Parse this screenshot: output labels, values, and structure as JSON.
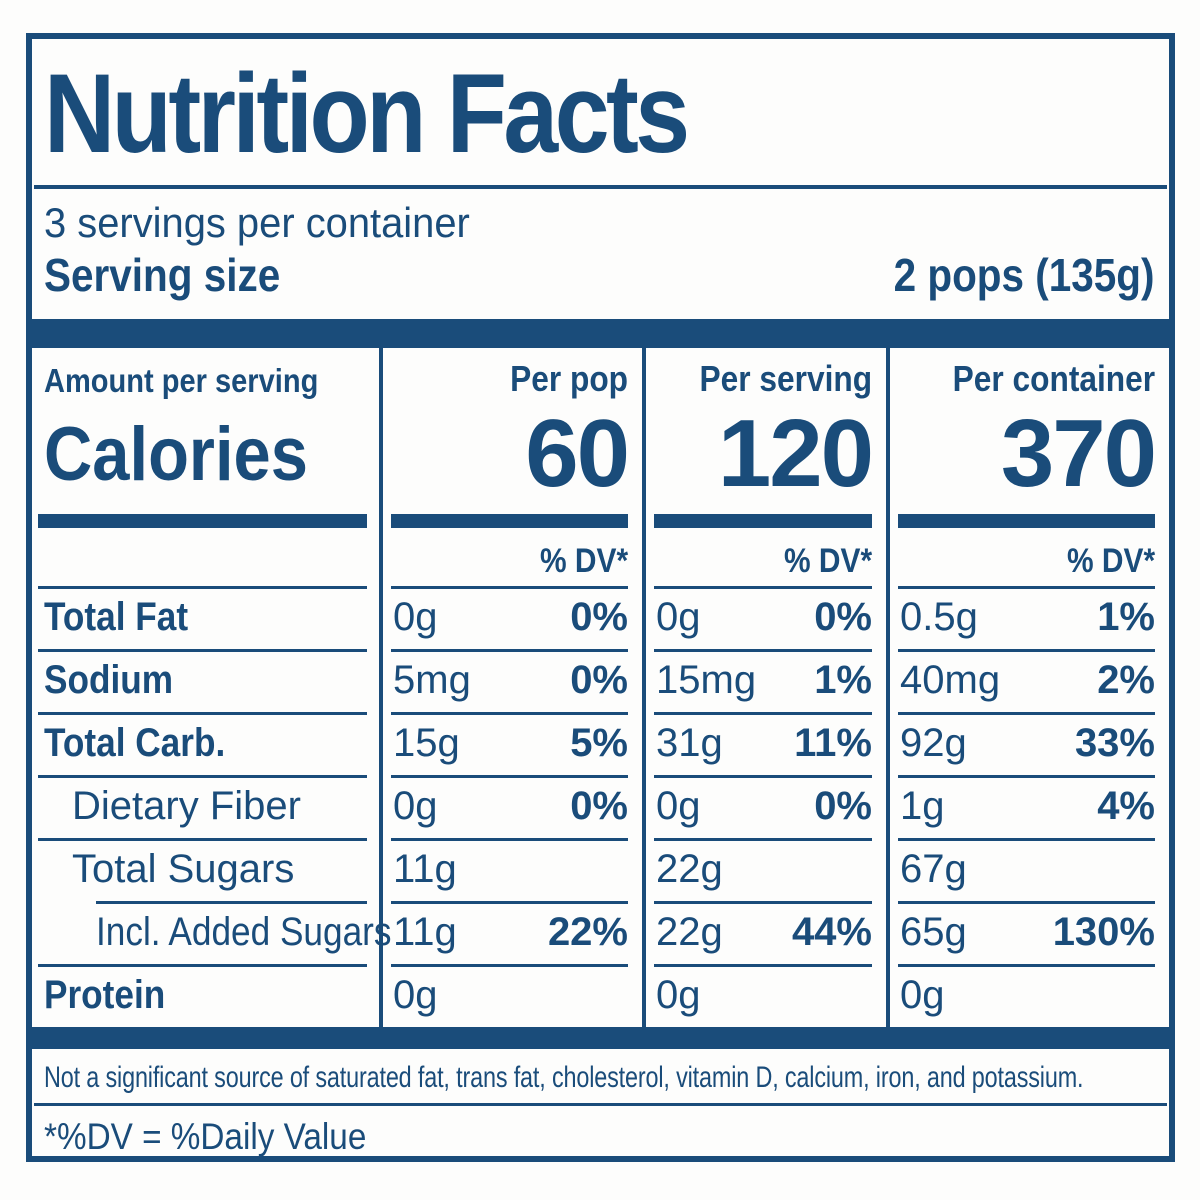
{
  "colors": {
    "ink": "#1a4c7a",
    "background": "#fdfdfc"
  },
  "header": {
    "title": "Nutrition Facts",
    "servings_per_container": "3 servings per container",
    "serving_size_label": "Serving size",
    "serving_size_value": "2 pops (135g)"
  },
  "table": {
    "amount_per_serving_label": "Amount per serving",
    "calories_label": "Calories",
    "columns": [
      {
        "header": "Per pop",
        "calories": "60",
        "dv_header": "% DV*"
      },
      {
        "header": "Per serving",
        "calories": "120",
        "dv_header": "% DV*"
      },
      {
        "header": "Per container",
        "calories": "370",
        "dv_header": "% DV*"
      }
    ],
    "rows": [
      {
        "label": "Total Fat",
        "cols": [
          {
            "amount": "0g",
            "dv": "0%"
          },
          {
            "amount": "0g",
            "dv": "0%"
          },
          {
            "amount": "0.5g",
            "dv": "1%"
          }
        ]
      },
      {
        "label": "Sodium",
        "cols": [
          {
            "amount": "5mg",
            "dv": "0%"
          },
          {
            "amount": "15mg",
            "dv": "1%"
          },
          {
            "amount": "40mg",
            "dv": "2%"
          }
        ]
      },
      {
        "label": "Total Carb.",
        "cols": [
          {
            "amount": "15g",
            "dv": "5%"
          },
          {
            "amount": "31g",
            "dv": "11%"
          },
          {
            "amount": "92g",
            "dv": "33%"
          }
        ]
      },
      {
        "label": "Dietary Fiber",
        "cols": [
          {
            "amount": "0g",
            "dv": "0%"
          },
          {
            "amount": "0g",
            "dv": "0%"
          },
          {
            "amount": "1g",
            "dv": "4%"
          }
        ]
      },
      {
        "label": "Total Sugars",
        "cols": [
          {
            "amount": "11g",
            "dv": ""
          },
          {
            "amount": "22g",
            "dv": ""
          },
          {
            "amount": "67g",
            "dv": ""
          }
        ]
      },
      {
        "label": "Incl. Added Sugars",
        "cols": [
          {
            "amount": "11g",
            "dv": "22%"
          },
          {
            "amount": "22g",
            "dv": "44%"
          },
          {
            "amount": "65g",
            "dv": "130%"
          }
        ]
      },
      {
        "label": "Protein",
        "cols": [
          {
            "amount": "0g",
            "dv": ""
          },
          {
            "amount": "0g",
            "dv": ""
          },
          {
            "amount": "0g",
            "dv": ""
          }
        ]
      }
    ]
  },
  "footnotes": {
    "sources": "Not a significant source of saturated fat, trans fat, cholesterol, vitamin D, calcium, iron, and potassium.",
    "dv_definition": "*%DV = %Daily Value"
  }
}
